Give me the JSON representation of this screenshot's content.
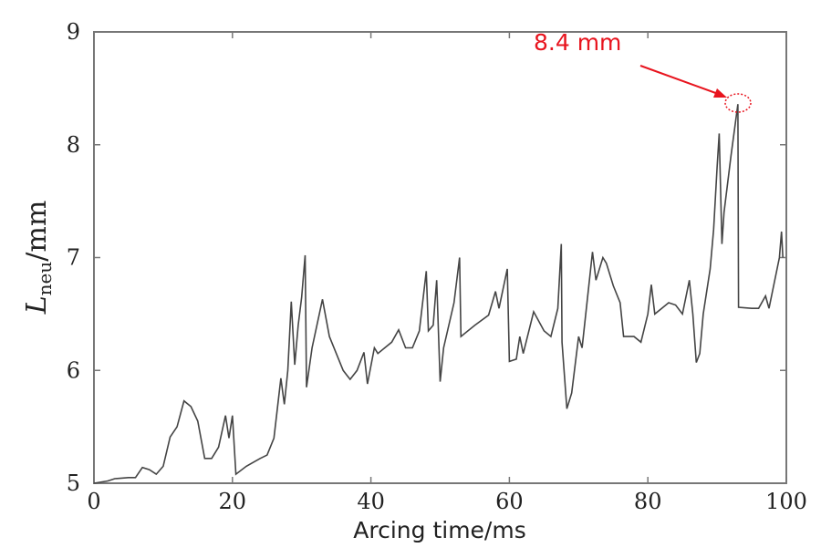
{
  "chart_data": {
    "type": "line",
    "title": "",
    "xlabel": "Arcing time/ms",
    "ylabel_main": "L",
    "ylabel_sub": "neu",
    "ylabel_unit": "/mm",
    "xlim": [
      0,
      100
    ],
    "ylim": [
      5,
      9
    ],
    "xticks": [
      "0",
      "20",
      "40",
      "60",
      "80",
      "100"
    ],
    "yticks": [
      "5",
      "6",
      "7",
      "8",
      "9"
    ],
    "grid": false,
    "line_color": "#444444",
    "annotation": {
      "text": "8.4 mm",
      "x": 93,
      "y": 8.38,
      "color": "#e8141e"
    },
    "series": [
      {
        "x": [
          0,
          2,
          3,
          5,
          6,
          7,
          8,
          9,
          10,
          11,
          12,
          13,
          14,
          15,
          16,
          17,
          18,
          19,
          19.5,
          20,
          20.5,
          22,
          24,
          25,
          26,
          27,
          27.5,
          28,
          28.5,
          29,
          29.5,
          30,
          30.5,
          30.7,
          31.5,
          33,
          34,
          36,
          37,
          38,
          39,
          39.5,
          40.5,
          41,
          43,
          44,
          45,
          46,
          47,
          48,
          48.3,
          49,
          49.5,
          50,
          50.5,
          52,
          52.8,
          53,
          55,
          57,
          58,
          58.5,
          59.7,
          60,
          61,
          61.5,
          62,
          63.5,
          65,
          66,
          67,
          67.5,
          67.6,
          68.3,
          69,
          70,
          70.5,
          72,
          72.5,
          73.5,
          74,
          75,
          76,
          76.5,
          78,
          79,
          80,
          80.5,
          81,
          82,
          83,
          84,
          85,
          86,
          86.5,
          87,
          87.5,
          88,
          89,
          89.5,
          90,
          90.3,
          90.7,
          91,
          92,
          93,
          93.1,
          95,
          96,
          97,
          97.5,
          98,
          99,
          99.3,
          99.5
        ],
        "y": [
          5.0,
          5.02,
          5.04,
          5.05,
          5.05,
          5.14,
          5.12,
          5.08,
          5.15,
          5.41,
          5.5,
          5.73,
          5.68,
          5.55,
          5.22,
          5.22,
          5.32,
          5.6,
          5.4,
          5.6,
          5.08,
          5.15,
          5.22,
          5.25,
          5.4,
          5.93,
          5.7,
          6.0,
          6.61,
          6.05,
          6.4,
          6.65,
          7.02,
          5.85,
          6.2,
          6.63,
          6.3,
          6.0,
          5.92,
          6.0,
          6.16,
          5.88,
          6.2,
          6.15,
          6.25,
          6.36,
          6.2,
          6.2,
          6.35,
          6.88,
          6.35,
          6.4,
          6.8,
          5.9,
          6.2,
          6.6,
          7.0,
          6.3,
          6.4,
          6.49,
          6.7,
          6.55,
          6.9,
          6.08,
          6.1,
          6.3,
          6.15,
          6.52,
          6.35,
          6.3,
          6.55,
          7.12,
          6.25,
          5.66,
          5.8,
          6.3,
          6.2,
          7.05,
          6.8,
          7.0,
          6.95,
          6.75,
          6.6,
          6.3,
          6.3,
          6.25,
          6.5,
          6.76,
          6.5,
          6.55,
          6.6,
          6.58,
          6.5,
          6.8,
          6.5,
          6.07,
          6.15,
          6.5,
          6.9,
          7.25,
          7.8,
          8.1,
          7.12,
          7.4,
          7.9,
          8.36,
          6.56,
          6.55,
          6.55,
          6.66,
          6.55,
          6.7,
          7.0,
          7.23,
          7.0
        ]
      }
    ]
  }
}
